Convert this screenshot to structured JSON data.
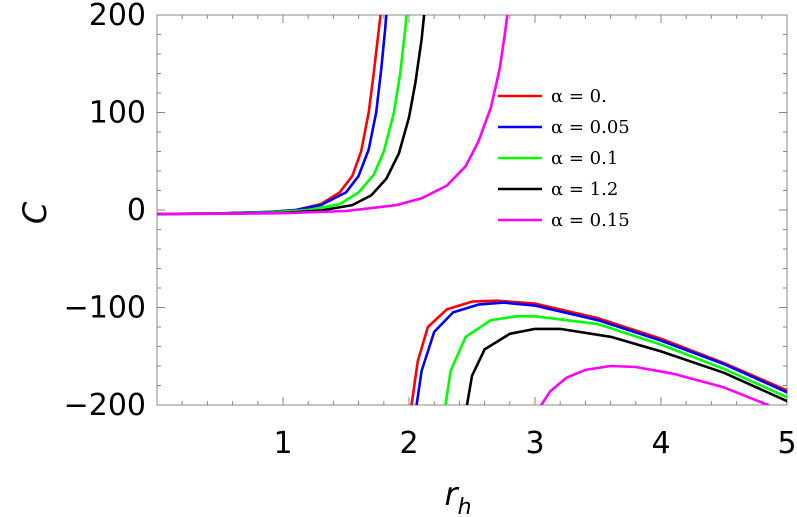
{
  "chart_data": {
    "type": "line",
    "xlabel": "r",
    "xlabel_sub": "h",
    "ylabel": "C",
    "xlim": [
      0,
      5
    ],
    "ylim": [
      -200,
      200
    ],
    "x_ticks": [
      1,
      2,
      3,
      4,
      5
    ],
    "y_ticks": [
      200,
      100,
      0,
      -100,
      -200
    ],
    "y_tick_labels": [
      "200",
      "100",
      "0",
      "−100",
      "−200"
    ],
    "grid": false,
    "legend_position": "top-right",
    "series": [
      {
        "name": "α = 0.",
        "color": "#ff0000",
        "segments": [
          [
            [
              0,
              -4
            ],
            [
              0.5,
              -3.5
            ],
            [
              0.9,
              -2
            ],
            [
              1.1,
              0
            ],
            [
              1.3,
              6
            ],
            [
              1.45,
              18
            ],
            [
              1.55,
              35
            ],
            [
              1.62,
              60
            ],
            [
              1.68,
              100
            ],
            [
              1.72,
              140
            ],
            [
              1.76,
              185
            ],
            [
              1.775,
              200
            ]
          ],
          [
            [
              2.02,
              -200
            ],
            [
              2.07,
              -155
            ],
            [
              2.15,
              -120
            ],
            [
              2.3,
              -102
            ],
            [
              2.5,
              -94
            ],
            [
              2.7,
              -93
            ],
            [
              3.0,
              -96
            ],
            [
              3.5,
              -111
            ],
            [
              4.0,
              -132
            ],
            [
              4.5,
              -157
            ],
            [
              5,
              -185
            ]
          ]
        ]
      },
      {
        "name": "α = 0.05",
        "color": "#0000ff",
        "segments": [
          [
            [
              0,
              -4
            ],
            [
              0.5,
              -3.5
            ],
            [
              0.9,
              -2
            ],
            [
              1.1,
              0
            ],
            [
              1.3,
              5
            ],
            [
              1.5,
              18
            ],
            [
              1.6,
              35
            ],
            [
              1.68,
              62
            ],
            [
              1.74,
              100
            ],
            [
              1.78,
              145
            ],
            [
              1.81,
              185
            ],
            [
              1.82,
              200
            ]
          ],
          [
            [
              2.06,
              -200
            ],
            [
              2.1,
              -165
            ],
            [
              2.2,
              -125
            ],
            [
              2.35,
              -105
            ],
            [
              2.55,
              -97
            ],
            [
              2.75,
              -95
            ],
            [
              3.0,
              -98
            ],
            [
              3.5,
              -113
            ],
            [
              4.0,
              -134
            ],
            [
              4.5,
              -158
            ],
            [
              5,
              -187
            ]
          ]
        ]
      },
      {
        "name": "α = 0.1",
        "color": "#00ff00",
        "segments": [
          [
            [
              0,
              -4
            ],
            [
              0.5,
              -3.7
            ],
            [
              0.9,
              -2.5
            ],
            [
              1.2,
              0
            ],
            [
              1.45,
              6
            ],
            [
              1.6,
              18
            ],
            [
              1.72,
              36
            ],
            [
              1.8,
              60
            ],
            [
              1.88,
              100
            ],
            [
              1.93,
              140
            ],
            [
              1.97,
              185
            ],
            [
              1.98,
              200
            ]
          ],
          [
            [
              2.29,
              -200
            ],
            [
              2.33,
              -165
            ],
            [
              2.45,
              -130
            ],
            [
              2.65,
              -113
            ],
            [
              2.85,
              -109
            ],
            [
              3.0,
              -109
            ],
            [
              3.5,
              -117
            ],
            [
              4.0,
              -138
            ],
            [
              4.5,
              -163
            ],
            [
              5,
              -192
            ]
          ]
        ]
      },
      {
        "name": "α = 1.2",
        "color": "#000000",
        "segments": [
          [
            [
              0,
              -4
            ],
            [
              0.5,
              -3.8
            ],
            [
              1.0,
              -3
            ],
            [
              1.3,
              -0.5
            ],
            [
              1.55,
              5
            ],
            [
              1.7,
              15
            ],
            [
              1.82,
              32
            ],
            [
              1.92,
              58
            ],
            [
              2.0,
              95
            ],
            [
              2.05,
              130
            ],
            [
              2.1,
              175
            ],
            [
              2.12,
              200
            ]
          ],
          [
            [
              2.46,
              -200
            ],
            [
              2.5,
              -170
            ],
            [
              2.6,
              -143
            ],
            [
              2.8,
              -127
            ],
            [
              3.0,
              -122
            ],
            [
              3.2,
              -122
            ],
            [
              3.6,
              -130
            ],
            [
              4.0,
              -145
            ],
            [
              4.5,
              -167
            ],
            [
              5,
              -196
            ]
          ]
        ]
      },
      {
        "name": "α = 0.15",
        "color": "#ff00ff",
        "segments": [
          [
            [
              0,
              -4
            ],
            [
              0.5,
              -3.8
            ],
            [
              1.0,
              -3.3
            ],
            [
              1.5,
              -1
            ],
            [
              1.9,
              5
            ],
            [
              2.1,
              12
            ],
            [
              2.3,
              25
            ],
            [
              2.45,
              45
            ],
            [
              2.55,
              70
            ],
            [
              2.65,
              105
            ],
            [
              2.72,
              145
            ],
            [
              2.76,
              180
            ],
            [
              2.78,
              200
            ]
          ],
          [
            [
              3.05,
              -200
            ],
            [
              3.12,
              -186
            ],
            [
              3.25,
              -172
            ],
            [
              3.4,
              -164
            ],
            [
              3.6,
              -160
            ],
            [
              3.8,
              -161
            ],
            [
              4.1,
              -168
            ],
            [
              4.5,
              -182
            ],
            [
              4.85,
              -200
            ]
          ]
        ]
      }
    ]
  }
}
